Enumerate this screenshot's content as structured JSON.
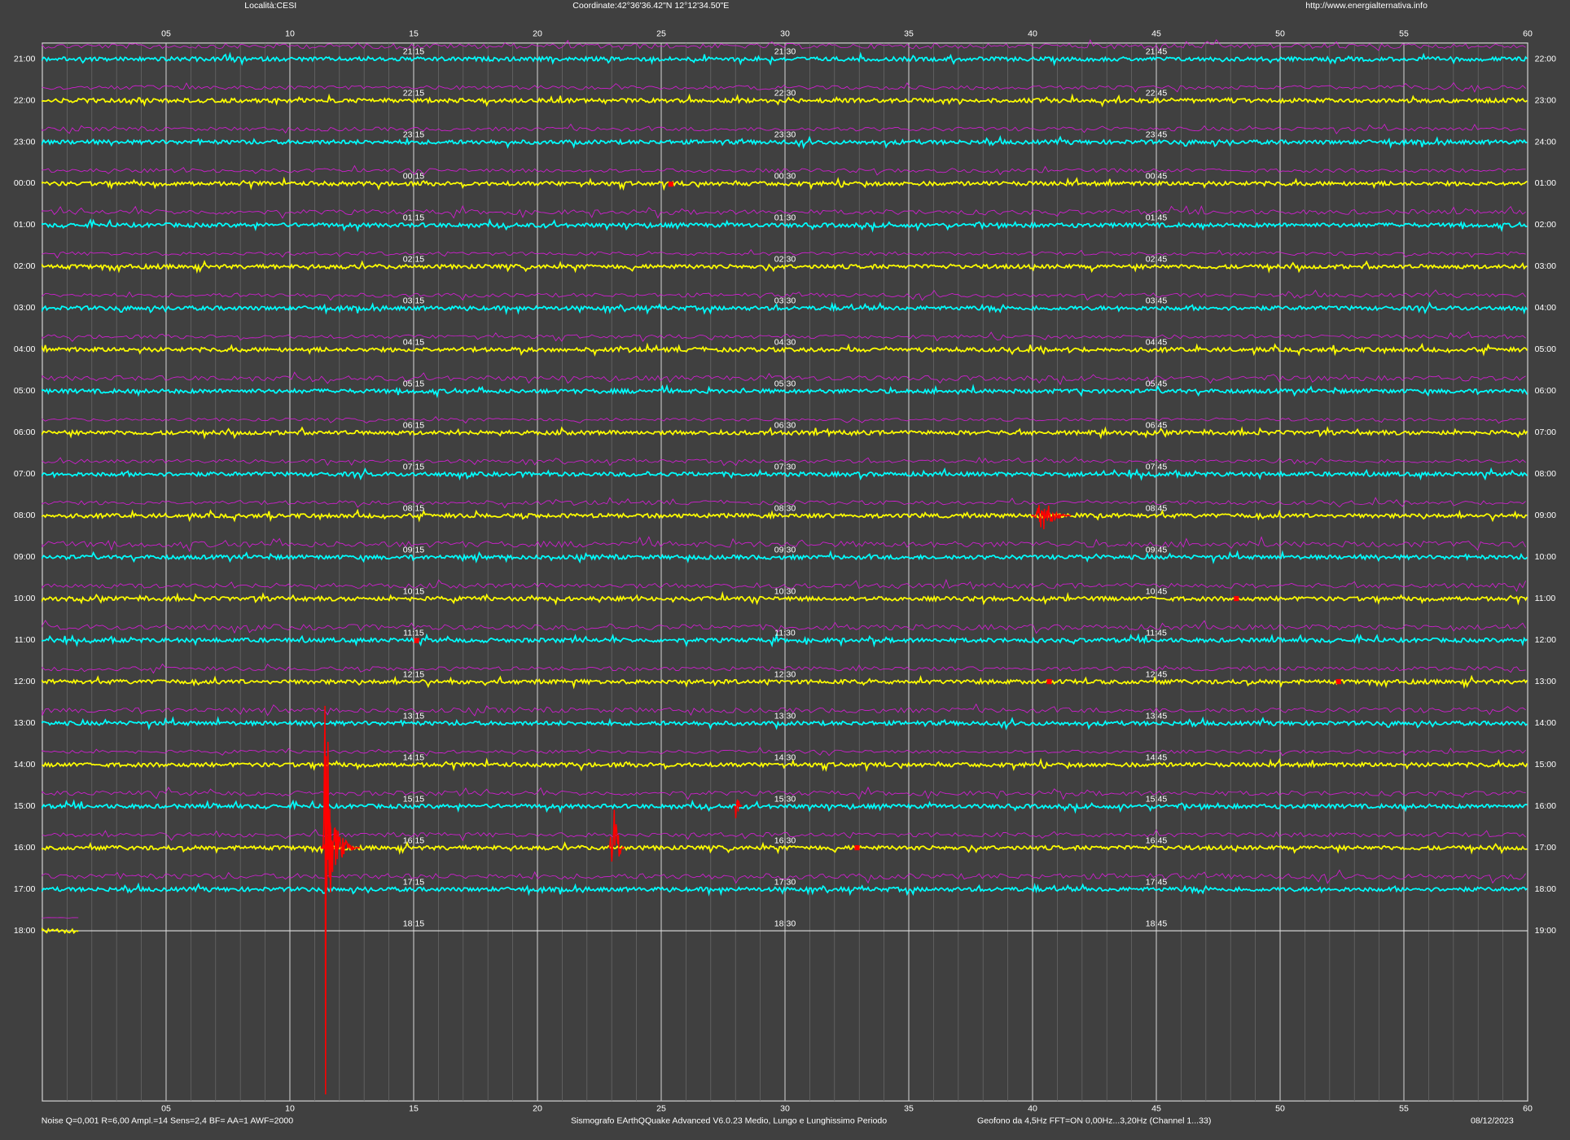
{
  "header": {
    "location": "Località:CESI",
    "coordinates": "Coordinate:42°36'36.42\"N  12°12'34.50\"E",
    "url": "http://www.energialternativa.info"
  },
  "minute_ticks": [
    "05",
    "10",
    "15",
    "20",
    "25",
    "30",
    "35",
    "40",
    "45",
    "50",
    "55",
    "60"
  ],
  "rows": [
    {
      "left": "21:00",
      "right": "22:00",
      "q15": "21:15",
      "q30": "21:30",
      "q45": "21:45"
    },
    {
      "left": "22:00",
      "right": "23:00",
      "q15": "22:15",
      "q30": "22:30",
      "q45": "22:45"
    },
    {
      "left": "23:00",
      "right": "24:00",
      "q15": "23:15",
      "q30": "23:30",
      "q45": "23:45"
    },
    {
      "left": "00:00",
      "right": "01:00",
      "q15": "00:15",
      "q30": "00:30",
      "q45": "00:45"
    },
    {
      "left": "01:00",
      "right": "02:00",
      "q15": "01:15",
      "q30": "01:30",
      "q45": "01:45"
    },
    {
      "left": "02:00",
      "right": "03:00",
      "q15": "02:15",
      "q30": "02:30",
      "q45": "02:45"
    },
    {
      "left": "03:00",
      "right": "04:00",
      "q15": "03:15",
      "q30": "03:30",
      "q45": "03:45"
    },
    {
      "left": "04:00",
      "right": "05:00",
      "q15": "04:15",
      "q30": "04:30",
      "q45": "04:45"
    },
    {
      "left": "05:00",
      "right": "06:00",
      "q15": "05:15",
      "q30": "05:30",
      "q45": "05:45"
    },
    {
      "left": "06:00",
      "right": "07:00",
      "q15": "06:15",
      "q30": "06:30",
      "q45": "06:45"
    },
    {
      "left": "07:00",
      "right": "08:00",
      "q15": "07:15",
      "q30": "07:30",
      "q45": "07:45"
    },
    {
      "left": "08:00",
      "right": "09:00",
      "q15": "08:15",
      "q30": "08:30",
      "q45": "08:45"
    },
    {
      "left": "09:00",
      "right": "10:00",
      "q15": "09:15",
      "q30": "09:30",
      "q45": "09:45"
    },
    {
      "left": "10:00",
      "right": "11:00",
      "q15": "10:15",
      "q30": "10:30",
      "q45": "10:45"
    },
    {
      "left": "11:00",
      "right": "12:00",
      "q15": "11:15",
      "q30": "11:30",
      "q45": "11:45"
    },
    {
      "left": "12:00",
      "right": "13:00",
      "q15": "12:15",
      "q30": "12:30",
      "q45": "12:45"
    },
    {
      "left": "13:00",
      "right": "14:00",
      "q15": "13:15",
      "q30": "13:30",
      "q45": "13:45"
    },
    {
      "left": "14:00",
      "right": "15:00",
      "q15": "14:15",
      "q30": "14:30",
      "q45": "14:45"
    },
    {
      "left": "15:00",
      "right": "16:00",
      "q15": "15:15",
      "q30": "15:30",
      "q45": "15:45"
    },
    {
      "left": "16:00",
      "right": "17:00",
      "q15": "16:15",
      "q30": "16:30",
      "q45": "16:45"
    },
    {
      "left": "17:00",
      "right": "18:00",
      "q15": "17:15",
      "q30": "17:30",
      "q45": "17:45"
    },
    {
      "left": "18:00",
      "right": "19:00",
      "q15": "18:15",
      "q30": "18:30",
      "q45": "18:45"
    }
  ],
  "footer": {
    "settings": "Noise Q=0,001 R=6,00 Ampl.=14 Sens=2,4 BF= AA=1 AWF=2000",
    "software": "Sismografo  EArthQQuake Advanced V6.0.23  Medio, Lungo e Lunghissimo Periodo",
    "sensor": "Geofono da 4,5Hz FFT=ON 0,00Hz...3,20Hz      (Channel 1...33)",
    "date": "08/12/2023"
  }
}
